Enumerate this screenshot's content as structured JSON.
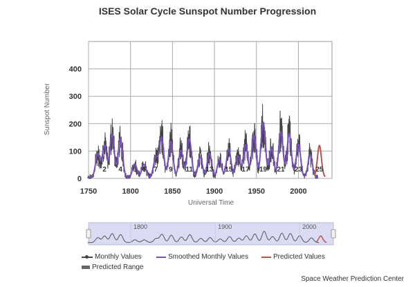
{
  "page": {
    "title": "ISES Solar Cycle Sunspot Number Progression",
    "credit": "Space Weather Prediction Center"
  },
  "chart_data": {
    "type": "line",
    "title": "ISES Solar Cycle Sunspot Number Progression",
    "xlabel": "Universal Time",
    "ylabel": "Sunspot Number",
    "xlim": [
      1750,
      2040
    ],
    "ylim": [
      0,
      500
    ],
    "x_ticks": [
      "1750",
      "1800",
      "1850",
      "1900",
      "1950",
      "2000"
    ],
    "y_ticks": [
      "0",
      "100",
      "200",
      "300",
      "400"
    ],
    "grid": true,
    "legend_position": "bottom",
    "colors": {
      "monthly": "#444444",
      "smoothed": "#7b4fc4",
      "predicted": "#c0504d",
      "predicted_range": "#666666",
      "navigator_fill": "#d9dcf3"
    },
    "cycles": [
      {
        "label": "",
        "peak_year": 1761,
        "smoothed_max": 86
      },
      {
        "label": "2",
        "peak_year": 1769,
        "smoothed_max": 116
      },
      {
        "label": "",
        "peak_year": 1778,
        "smoothed_max": 158
      },
      {
        "label": "4",
        "peak_year": 1788,
        "smoothed_max": 141
      },
      {
        "label": "5",
        "peak_year": 1805,
        "smoothed_max": 49
      },
      {
        "label": "6",
        "peak_year": 1816,
        "smoothed_max": 48
      },
      {
        "label": "7",
        "peak_year": 1830,
        "smoothed_max": 71
      },
      {
        "label": "",
        "peak_year": 1837,
        "smoothed_max": 146
      },
      {
        "label": "9",
        "peak_year": 1848,
        "smoothed_max": 131
      },
      {
        "label": "",
        "peak_year": 1860,
        "smoothed_max": 98
      },
      {
        "label": "11",
        "peak_year": 1870,
        "smoothed_max": 140
      },
      {
        "label": "",
        "peak_year": 1883,
        "smoothed_max": 74
      },
      {
        "label": "13",
        "peak_year": 1894,
        "smoothed_max": 88
      },
      {
        "label": "",
        "peak_year": 1906,
        "smoothed_max": 64
      },
      {
        "label": "15",
        "peak_year": 1917,
        "smoothed_max": 105
      },
      {
        "label": "",
        "peak_year": 1928,
        "smoothed_max": 78
      },
      {
        "label": "17",
        "peak_year": 1937,
        "smoothed_max": 119
      },
      {
        "label": "",
        "peak_year": 1947,
        "smoothed_max": 152
      },
      {
        "label": "19",
        "peak_year": 1958,
        "smoothed_max": 201
      },
      {
        "label": "",
        "peak_year": 1968,
        "smoothed_max": 106
      },
      {
        "label": "21",
        "peak_year": 1979,
        "smoothed_max": 165
      },
      {
        "label": "",
        "peak_year": 1989,
        "smoothed_max": 159
      },
      {
        "label": "23",
        "peak_year": 2000,
        "smoothed_max": 121
      },
      {
        "label": "",
        "peak_year": 2014,
        "smoothed_max": 82
      },
      {
        "label": "25",
        "peak_year": 2025,
        "smoothed_max": 115
      }
    ],
    "predicted": {
      "peak_year": 2025,
      "peak_value": 115,
      "end_year": 2032
    }
  },
  "navigator": {
    "ticks": [
      "1800",
      "1900",
      "2000"
    ]
  },
  "legend": [
    {
      "label": "Monthly Values",
      "color": "#444444",
      "kind": "line-dot"
    },
    {
      "label": "Smoothed Monthly Values",
      "color": "#7b4fc4",
      "kind": "line"
    },
    {
      "label": "Predicted Values",
      "color": "#c0504d",
      "kind": "line"
    },
    {
      "label": "Predicted Range",
      "color": "#666666",
      "kind": "box"
    }
  ]
}
